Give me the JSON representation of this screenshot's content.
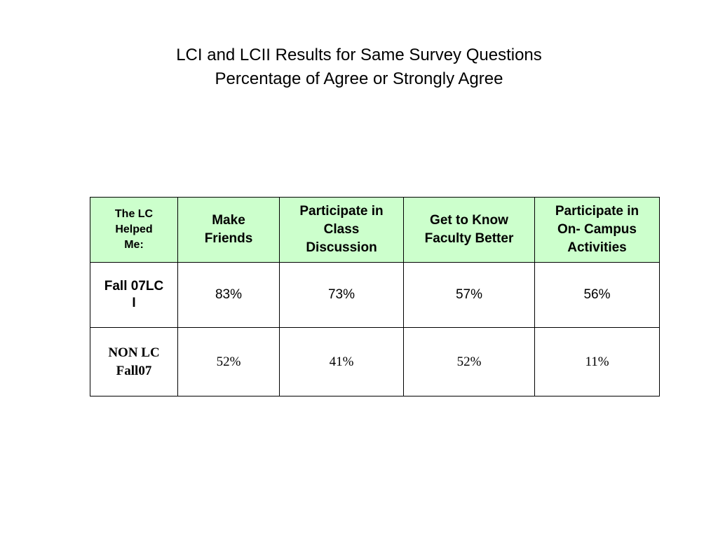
{
  "title": {
    "line1": "LCI and LCII Results for Same Survey Questions",
    "line2": "Percentage of Agree or Strongly Agree"
  },
  "table": {
    "corner_header": [
      "The LC",
      "Helped",
      "Me:"
    ],
    "columns": [
      [
        "Make",
        "Friends"
      ],
      [
        "Participate in",
        "Class",
        "Discussion"
      ],
      [
        "Get to Know",
        "Faculty Better"
      ],
      [
        "Participate in",
        "On- Campus",
        "Activities"
      ]
    ],
    "rows": [
      {
        "label": [
          "Fall 07LC",
          "I"
        ],
        "values": [
          "83%",
          "73%",
          "57%",
          "56%"
        ]
      },
      {
        "label": [
          "NON LC",
          "Fall07"
        ],
        "values": [
          "52%",
          "41%",
          "52%",
          "11%"
        ]
      }
    ]
  },
  "colors": {
    "header_background": "#ccffcc",
    "border": "#000000"
  }
}
